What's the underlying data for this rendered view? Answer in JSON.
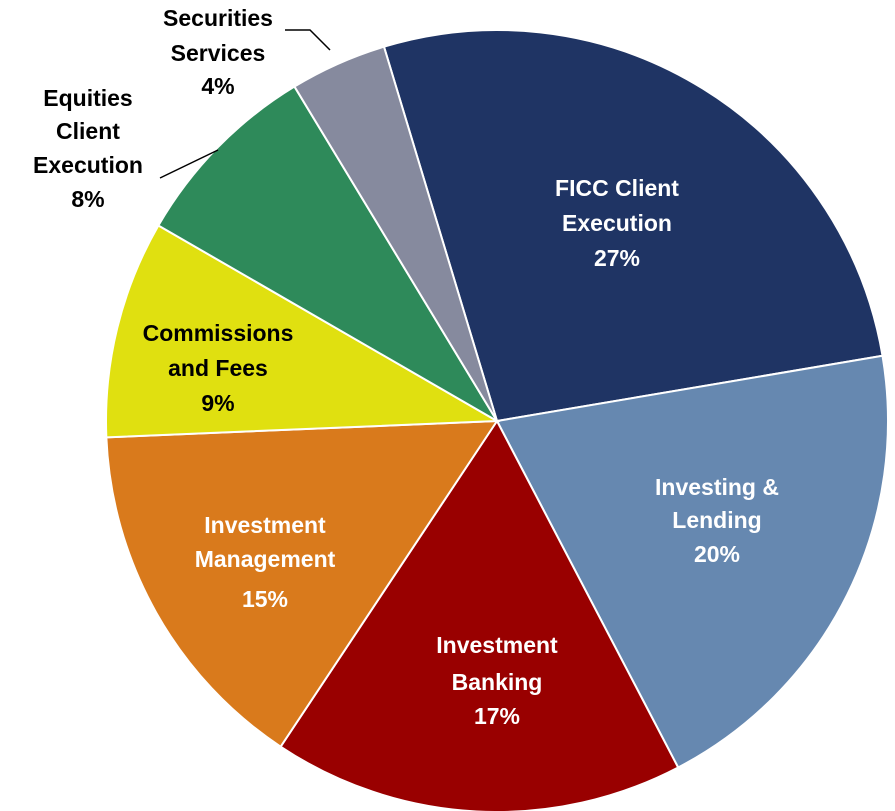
{
  "chart_data": {
    "type": "pie",
    "categories": [
      "FICC Client Execution",
      "Investing & Lending",
      "Investment Banking",
      "Investment Management",
      "Commissions and Fees",
      "Equities Client Execution",
      "Securities Services"
    ],
    "values": [
      27,
      20,
      17,
      15,
      9,
      8,
      4
    ],
    "value_labels": [
      "27%",
      "20%",
      "17%",
      "15%",
      "9%",
      "8%",
      "4%"
    ],
    "colors": [
      "#1f3464",
      "#6688b0",
      "#990000",
      "#d97a1c",
      "#e0e010",
      "#2e8a5a",
      "#868a9e"
    ]
  }
}
